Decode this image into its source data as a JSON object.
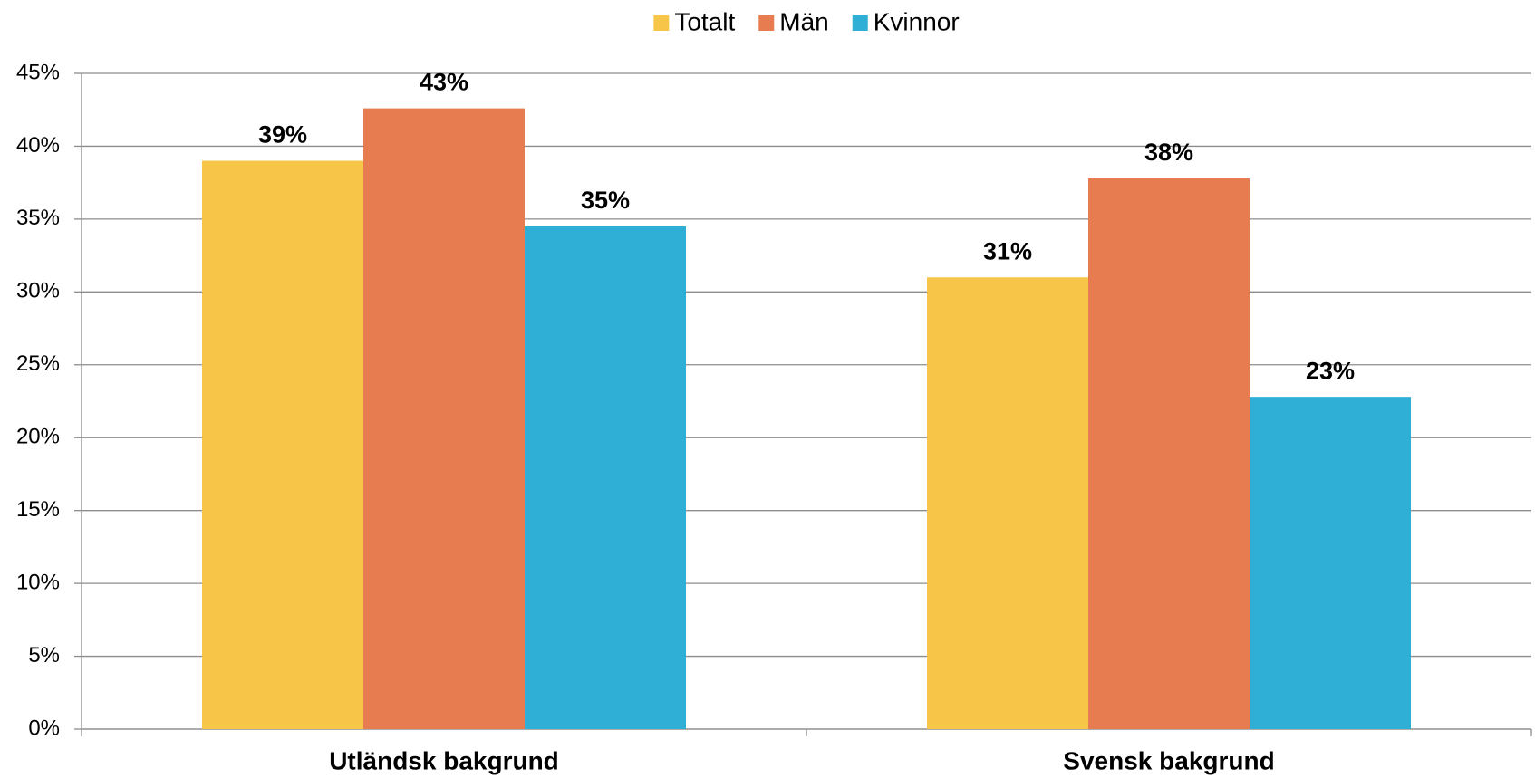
{
  "chart_data": {
    "type": "bar",
    "categories": [
      "Utländsk bakgrund",
      "Svensk bakgrund"
    ],
    "series": [
      {
        "name": "Totalt",
        "color": "#f7c548",
        "values": [
          39,
          31
        ],
        "value_labels": [
          "39%",
          "31%"
        ]
      },
      {
        "name": "Män",
        "color": "#e77c50",
        "values": [
          42.6,
          37.8
        ],
        "value_labels": [
          "43%",
          "38%"
        ]
      },
      {
        "name": "Kvinnor",
        "color": "#2fafd6",
        "values": [
          34.5,
          22.8
        ],
        "value_labels": [
          "35%",
          "23%"
        ]
      }
    ],
    "ylim": [
      0,
      45
    ],
    "yticks": [
      {
        "value": 0,
        "label": "0%"
      },
      {
        "value": 5,
        "label": "5%"
      },
      {
        "value": 10,
        "label": "10%"
      },
      {
        "value": 15,
        "label": "15%"
      },
      {
        "value": 20,
        "label": "20%"
      },
      {
        "value": 25,
        "label": "25%"
      },
      {
        "value": 30,
        "label": "30%"
      },
      {
        "value": 35,
        "label": "35%"
      },
      {
        "value": 40,
        "label": "40%"
      },
      {
        "value": 45,
        "label": "45%"
      }
    ],
    "grid": true,
    "legend": "top"
  }
}
